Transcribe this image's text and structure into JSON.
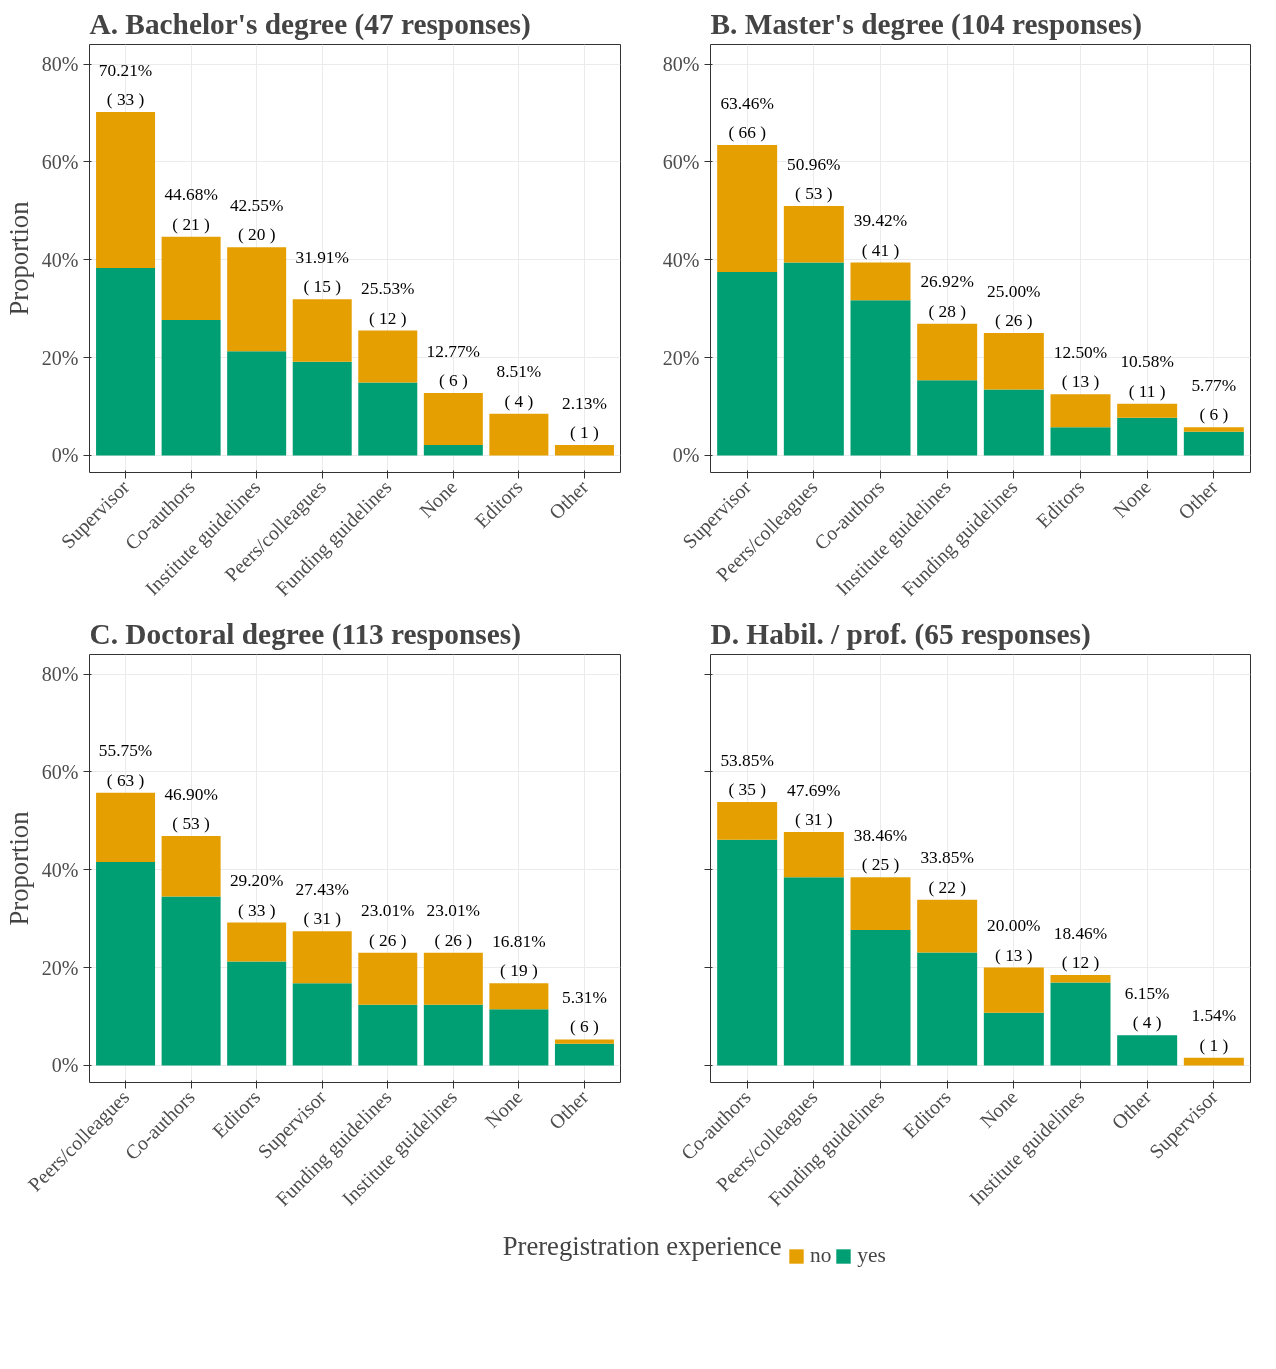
{
  "chart_data": [
    {
      "type": "bar",
      "title": "A. Bachelor's degree (47 responses)",
      "ylabel": "Proportion",
      "stacked": true,
      "grid": true,
      "legend": "bottom",
      "legend_title": "Preregistration experience",
      "categories": [
        "Supervisor",
        "Co-authors",
        "Institute guidelines",
        "Peers/colleagues",
        "Funding guidelines",
        "None",
        "Editors",
        "Other"
      ],
      "series": [
        {
          "name": "yes",
          "color": "#009e73",
          "values": [
            38.3,
            27.66,
            21.28,
            19.15,
            14.89,
            2.13,
            0,
            0
          ]
        },
        {
          "name": "no",
          "color": "#e69f00",
          "values": [
            31.91,
            17.02,
            21.27,
            12.76,
            10.64,
            10.64,
            8.51,
            2.13
          ]
        }
      ],
      "totals": [
        "70.21%\n( 33 )",
        "44.68%\n( 21 )",
        "42.55%\n( 20 )",
        "31.91%\n( 15 )",
        "25.53%\n( 12 )",
        "12.77%\n( 6 )",
        "8.51%\n( 4 )",
        "2.13%\n( 1 )"
      ],
      "ylim": [
        -3.5,
        84
      ],
      "yticks": [
        {
          "value": 0,
          "label": "0%"
        },
        {
          "value": 20,
          "label": "20%"
        },
        {
          "value": 40,
          "label": "40%"
        },
        {
          "value": 60,
          "label": "60%"
        },
        {
          "value": 80,
          "label": "80%"
        }
      ]
    },
    {
      "type": "bar",
      "title": "B. Master's degree (104 responses)",
      "stacked": true,
      "grid": true,
      "categories": [
        "Supervisor",
        "Peers/colleagues",
        "Co-authors",
        "Institute guidelines",
        "Funding guidelines",
        "Editors",
        "None",
        "Other"
      ],
      "series": [
        {
          "color": "#009e73",
          "values": [
            37.5,
            39.42,
            31.73,
            15.38,
            13.46,
            5.77,
            7.69,
            4.81
          ]
        },
        {
          "color": "#e69f00",
          "values": [
            25.96,
            11.54,
            7.69,
            11.54,
            11.54,
            6.73,
            2.89,
            0.96
          ]
        }
      ],
      "totals": [
        "63.46%\n( 66 )",
        "50.96%\n( 53 )",
        "39.42%\n( 41 )",
        "26.92%\n( 28 )",
        "25.00%\n( 26 )",
        "12.50%\n( 13 )",
        "10.58%\n( 11 )",
        "5.77%\n( 6 )"
      ],
      "ylim": [
        -3.5,
        84
      ],
      "yticks": [
        {
          "value": 0,
          "label": "0%"
        },
        {
          "value": 20,
          "label": "20%"
        },
        {
          "value": 40,
          "label": "40%"
        },
        {
          "value": 60,
          "label": "60%"
        },
        {
          "value": 80,
          "label": "80%"
        }
      ]
    },
    {
      "type": "bar",
      "title": "C. Doctoral degree (113 responses)",
      "ylabel": "Proportion",
      "stacked": true,
      "grid": true,
      "categories": [
        "Peers/colleagues",
        "Co-authors",
        "Editors",
        "Supervisor",
        "Funding guidelines",
        "Institute guidelines",
        "None",
        "Other"
      ],
      "series": [
        {
          "color": "#009e73",
          "values": [
            41.59,
            34.51,
            21.24,
            16.81,
            12.39,
            12.39,
            11.5,
            4.42
          ]
        },
        {
          "color": "#e69f00",
          "values": [
            14.16,
            12.39,
            7.96,
            10.62,
            10.62,
            10.62,
            5.31,
            0.89
          ]
        }
      ],
      "totals": [
        "55.75%\n( 63 )",
        "46.90%\n( 53 )",
        "29.20%\n( 33 )",
        "27.43%\n( 31 )",
        "23.01%\n( 26 )",
        "23.01%\n( 26 )",
        "16.81%\n( 19 )",
        "5.31%\n( 6 )"
      ],
      "ylim": [
        -3.5,
        84
      ],
      "yticks": [
        {
          "value": 0,
          "label": "0%"
        },
        {
          "value": 20,
          "label": "20%"
        },
        {
          "value": 40,
          "label": "40%"
        },
        {
          "value": 60,
          "label": "60%"
        },
        {
          "value": 80,
          "label": "80%"
        }
      ]
    },
    {
      "type": "bar",
      "title": "D. Habil. / prof. (65 responses)",
      "stacked": true,
      "grid": true,
      "tick_labels": "x",
      "categories": [
        "Co-authors",
        "Peers/colleagues",
        "Funding guidelines",
        "Editors",
        "None",
        "Institute guidelines",
        "Other",
        "Supervisor"
      ],
      "series": [
        {
          "color": "#009e73",
          "values": [
            46.15,
            38.46,
            27.69,
            23.08,
            10.77,
            16.92,
            6.15,
            0
          ]
        },
        {
          "color": "#e69f00",
          "values": [
            7.7,
            9.23,
            10.77,
            10.77,
            9.23,
            1.54,
            0,
            1.54
          ]
        }
      ],
      "totals": [
        "53.85%\n( 35 )",
        "47.69%\n( 31 )",
        "38.46%\n( 25 )",
        "33.85%\n( 22 )",
        "20.00%\n( 13 )",
        "18.46%\n( 12 )",
        "6.15%\n( 4 )",
        "1.54%\n( 1 )"
      ],
      "ylim": [
        -3.5,
        84
      ],
      "yticks": [
        {
          "value": 0,
          "label": null
        },
        {
          "value": 20,
          "label": null
        },
        {
          "value": 40,
          "label": null
        },
        {
          "value": 60,
          "label": null
        },
        {
          "value": 80,
          "label": null
        }
      ]
    }
  ]
}
